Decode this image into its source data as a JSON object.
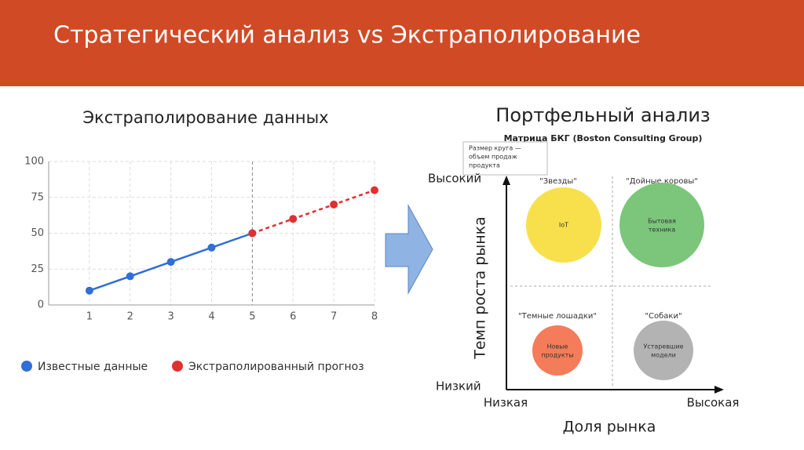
{
  "header": {
    "title": "Стратегический анализ vs Экстраполирование"
  },
  "chart_data": {
    "type": "line",
    "title": "Экстраполирование данных",
    "x": [
      1,
      2,
      3,
      4,
      5,
      6,
      7,
      8
    ],
    "series": [
      {
        "name": "Известные данные",
        "color": "#2f6fd6",
        "dashed": false,
        "values": [
          10,
          20,
          30,
          40,
          50,
          null,
          null,
          null
        ]
      },
      {
        "name": "Экстраполированный прогноз",
        "color": "#e03030",
        "dashed": true,
        "values": [
          null,
          null,
          null,
          null,
          50,
          60,
          70,
          80
        ]
      }
    ],
    "xlim": [
      0,
      8
    ],
    "xticks": [
      1,
      2,
      3,
      4,
      5,
      6,
      7,
      8
    ],
    "ylim": [
      0,
      100
    ],
    "yticks": [
      0,
      25,
      50,
      75,
      100
    ],
    "grid": true,
    "legend": "bottom"
  },
  "diagram": {
    "title": "Портфельный анализ",
    "subtitle": "Матрица БКГ (Boston Consulting Group)",
    "note": [
      "Размер круга —",
      "объем продаж",
      "продукта"
    ],
    "y_axis": {
      "label": "Темп роста рынка",
      "high": "Высокий",
      "low": "Низкий"
    },
    "x_axis": {
      "label": "Доля рынка",
      "low": "Низкая",
      "high": "Высокая"
    },
    "quadrants": [
      {
        "name": "\"Звезды\"",
        "label": [
          "IoT"
        ]
      },
      {
        "name": "\"Дойные коровы\"",
        "label": [
          "Бытовая",
          "техника"
        ]
      },
      {
        "name": "\"Темные лошадки\"",
        "label": [
          "Новые",
          "продукты"
        ]
      },
      {
        "name": "\"Собаки\"",
        "label": [
          "Устаревшие",
          "модели"
        ]
      }
    ]
  }
}
